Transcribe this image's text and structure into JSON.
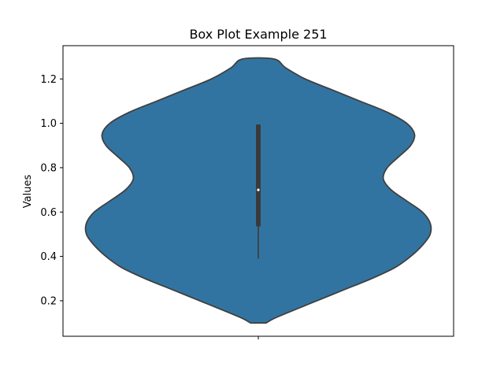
{
  "chart_data": {
    "type": "violin",
    "title": "Box Plot Example 251",
    "xlabel": "",
    "ylabel": "Values",
    "ylim": [
      0.04,
      1.35
    ],
    "yticks": [
      0.2,
      0.4,
      0.6,
      0.8,
      1.0,
      1.2
    ],
    "ytick_labels": [
      "0.2",
      "0.4",
      "0.6",
      "0.8",
      "1.0",
      "1.2"
    ],
    "x_ticks": [
      ""
    ],
    "grid": false,
    "colors": {
      "violin_fill": "#3274a1",
      "violin_edge": "#404040",
      "inner_box": "#3a3a3a",
      "median_dot": "#ffffff"
    },
    "violin": {
      "support_min": 0.1,
      "support_max": 1.29,
      "max_half_width": 0.44,
      "profile": [
        [
          0.1,
          0.02
        ],
        [
          0.12,
          0.04
        ],
        [
          0.15,
          0.08
        ],
        [
          0.2,
          0.15
        ],
        [
          0.25,
          0.22
        ],
        [
          0.3,
          0.29
        ],
        [
          0.35,
          0.35
        ],
        [
          0.4,
          0.39
        ],
        [
          0.45,
          0.42
        ],
        [
          0.5,
          0.44
        ],
        [
          0.55,
          0.44
        ],
        [
          0.6,
          0.42
        ],
        [
          0.65,
          0.38
        ],
        [
          0.7,
          0.34
        ],
        [
          0.75,
          0.32
        ],
        [
          0.8,
          0.33
        ],
        [
          0.85,
          0.36
        ],
        [
          0.9,
          0.39
        ],
        [
          0.95,
          0.4
        ],
        [
          1.0,
          0.38
        ],
        [
          1.05,
          0.33
        ],
        [
          1.1,
          0.26
        ],
        [
          1.15,
          0.19
        ],
        [
          1.2,
          0.12
        ],
        [
          1.25,
          0.07
        ],
        [
          1.29,
          0.04
        ]
      ]
    },
    "box": {
      "whisker_low": 0.39,
      "q1": 0.535,
      "median": 0.7,
      "q3": 0.995,
      "whisker_high": 0.995
    }
  }
}
